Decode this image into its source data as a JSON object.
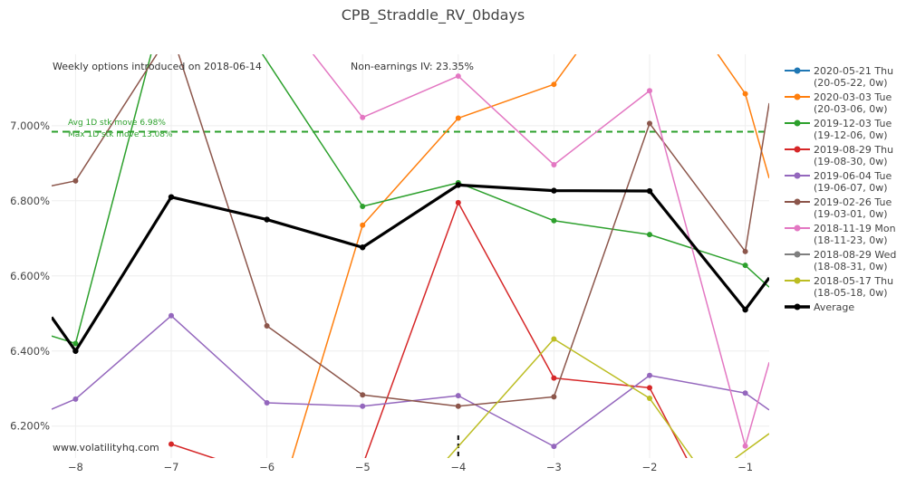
{
  "chart_data": {
    "type": "line",
    "title": "CPB_Straddle_RV_0bdays",
    "xlabel": "",
    "ylabel": "",
    "xlim": [
      -8.25,
      -0.75
    ],
    "ylim": [
      6.115,
      7.19
    ],
    "x_ticks": [
      -8,
      -7,
      -6,
      -5,
      -4,
      -3,
      -2,
      -1
    ],
    "x_tick_labels": [
      "−8",
      "−7",
      "−6",
      "−5",
      "−4",
      "−3",
      "−2",
      "−1"
    ],
    "y_ticks": [
      6.2,
      6.4,
      6.6,
      6.8,
      7.0
    ],
    "y_tick_labels": [
      "6.200%",
      "6.400%",
      "6.600%",
      "6.800%",
      "7.000%"
    ],
    "grid": true,
    "legend_position": "right",
    "annotations": {
      "weekly": "Weekly options introduced on 2018-06-14",
      "iv": "Non-earnings IV: 23.35%",
      "avg_move": "Avg 1D stk move 6.98%",
      "max_move": "Max 1D stk move 13.08%",
      "watermark": "www.volatilityhq.com"
    },
    "reference_line": {
      "y": 6.984,
      "color": "#2ca02c",
      "style": "dashed"
    },
    "event_marker_x": -4,
    "series": [
      {
        "name": "2020-05-21 Thu",
        "name2": "(20-05-22, 0w)",
        "color": "#1f77b4",
        "x": [],
        "y": []
      },
      {
        "name": "2020-03-03 Tue",
        "name2": "(20-03-06, 0w)",
        "color": "#ff7f0e",
        "x": [
          -5.8,
          -5,
          -4,
          -3,
          -2.6,
          -1.45,
          -1,
          -0.75
        ],
        "y": [
          6.06,
          6.735,
          7.02,
          7.11,
          7.25,
          7.25,
          7.085,
          6.86
        ]
      },
      {
        "name": "2019-12-03 Tue",
        "name2": "(19-12-06, 0w)",
        "color": "#2ca02c",
        "x": [
          -8.25,
          -8,
          -7.15,
          -6.2,
          -5,
          -4,
          -3,
          -2,
          -1,
          -0.75
        ],
        "y": [
          6.44,
          6.42,
          7.25,
          7.25,
          6.785,
          6.848,
          6.747,
          6.71,
          6.628,
          6.57
        ]
      },
      {
        "name": "2019-08-29 Thu",
        "name2": "(19-08-30, 0w)",
        "color": "#d62728",
        "x": [
          -7,
          -6.5,
          -5.05,
          -4,
          -3,
          -2,
          -1.5
        ],
        "y": [
          6.152,
          6.11,
          6.06,
          6.795,
          6.328,
          6.302,
          6.06
        ]
      },
      {
        "name": "2019-06-04 Tue",
        "name2": "(19-06-07, 0w)",
        "color": "#9467bd",
        "x": [
          -8.25,
          -8,
          -7,
          -6,
          -5,
          -4,
          -3,
          -2,
          -1,
          -0.75
        ],
        "y": [
          6.245,
          6.272,
          6.494,
          6.262,
          6.253,
          6.281,
          6.146,
          6.335,
          6.288,
          6.243
        ]
      },
      {
        "name": "2019-02-26 Tue",
        "name2": "(19-03-01, 0w)",
        "color": "#8c564b",
        "x": [
          -8.25,
          -8,
          -7,
          -6,
          -5,
          -4,
          -3,
          -2,
          -1,
          -0.75
        ],
        "y": [
          6.84,
          6.853,
          7.25,
          6.467,
          6.283,
          6.253,
          6.278,
          7.006,
          6.665,
          7.06
        ]
      },
      {
        "name": "2018-11-19 Mon",
        "name2": "(18-11-23, 0w)",
        "color": "#e377c2",
        "x": [
          -5.7,
          -5,
          -4,
          -3,
          -2,
          -1,
          -0.75
        ],
        "y": [
          7.25,
          7.022,
          7.132,
          6.896,
          7.093,
          6.147,
          6.37
        ]
      },
      {
        "name": "2018-08-29 Wed",
        "name2": "(18-08-31, 0w)",
        "color": "#7f7f7f",
        "x": [],
        "y": []
      },
      {
        "name": "2018-05-17 Thu",
        "name2": "(18-05-18, 0w)",
        "color": "#bcbd22",
        "x": [
          -4.3,
          -3,
          -2,
          -1.4,
          -0.75
        ],
        "y": [
          6.06,
          6.432,
          6.274,
          6.06,
          6.18
        ]
      },
      {
        "name": "Average",
        "name2": "",
        "color": "#000000",
        "width": 3.2,
        "x": [
          -8.25,
          -8,
          -7,
          -6,
          -5,
          -4,
          -3,
          -2,
          -1,
          -0.75
        ],
        "y": [
          6.49,
          6.4,
          6.81,
          6.75,
          6.676,
          6.842,
          6.827,
          6.826,
          6.51,
          6.595
        ]
      }
    ],
    "markers_hidden_at_edges": true
  }
}
